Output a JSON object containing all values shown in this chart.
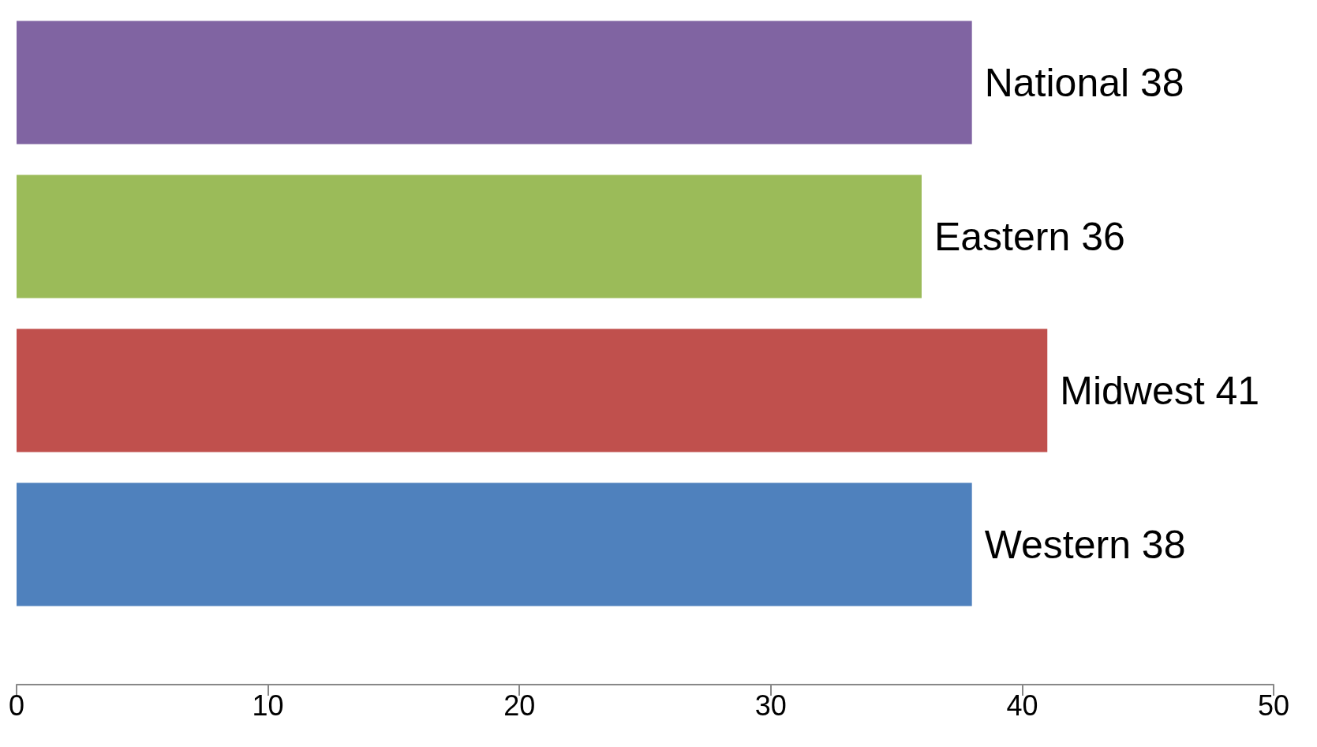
{
  "chart_data": {
    "type": "bar",
    "orientation": "horizontal",
    "categories": [
      null,
      null,
      null,
      null
    ],
    "values": [
      38,
      36,
      41,
      38
    ],
    "value_labels": [
      "National 38",
      "Eastern 36",
      "Midwest 41",
      "Western 38"
    ],
    "colors": [
      "#8064a2",
      "#9bbb59",
      "#c0504d",
      "#4f81bd"
    ],
    "xlim": [
      0,
      50
    ],
    "xticks": [
      0,
      10,
      20,
      30,
      40,
      50
    ],
    "grid": false,
    "tick_labels": "x"
  }
}
